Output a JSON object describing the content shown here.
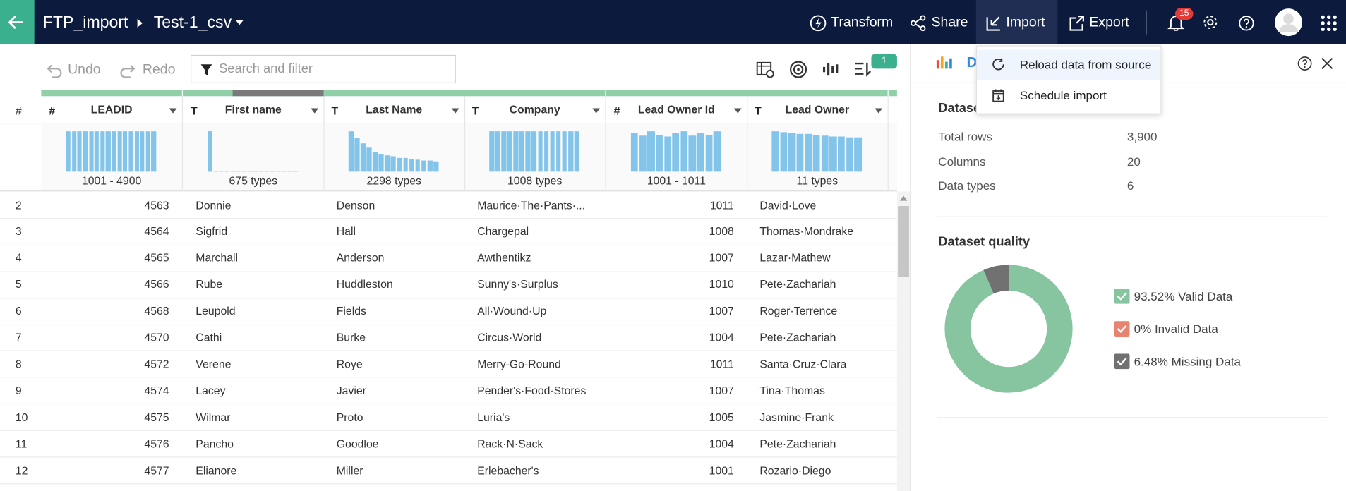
{
  "header": {
    "project": "FTP_import",
    "dataset": "Test-1_csv",
    "actions": [
      "Transform",
      "Share",
      "Import",
      "Export"
    ],
    "notification_count": 15
  },
  "toolbar": {
    "undo": "Undo",
    "redo": "Redo",
    "search_placeholder": "Search and filter",
    "badge": 1
  },
  "import_menu": [
    "Reload data from source",
    "Schedule import"
  ],
  "table": {
    "row_header": "#",
    "columns": [
      {
        "type": "#",
        "name": "LEADID",
        "summary": "1001 - 4900"
      },
      {
        "type": "T",
        "name": "First name",
        "summary": "675 types"
      },
      {
        "type": "T",
        "name": "Last Name",
        "summary": "2298 types"
      },
      {
        "type": "T",
        "name": "Company",
        "summary": "1008 types"
      },
      {
        "type": "#",
        "name": "Lead Owner Id",
        "summary": "1001 - 1011"
      },
      {
        "type": "T",
        "name": "Lead Owner",
        "summary": "11 types"
      }
    ],
    "rows": [
      [
        2,
        4563,
        "Donnie",
        "Denson",
        "Maurice·The·Pants·...",
        1011,
        "David·Love"
      ],
      [
        3,
        4564,
        "Sigfrid",
        "Hall",
        "Chargepal",
        1008,
        "Thomas·Mondrake"
      ],
      [
        4,
        4565,
        "Marchall",
        "Anderson",
        "Awthentikz",
        1007,
        "Lazar·Mathew"
      ],
      [
        5,
        4566,
        "Rube",
        "Huddleston",
        "Sunny's·Surplus",
        1010,
        "Pete·Zachariah"
      ],
      [
        6,
        4568,
        "Leupold",
        "Fields",
        "All·Wound·Up",
        1007,
        "Roger·Terrence"
      ],
      [
        7,
        4570,
        "Cathi",
        "Burke",
        "Circus·World",
        1004,
        "Pete·Zachariah"
      ],
      [
        8,
        4572,
        "Verene",
        "Roye",
        "Merry-Go-Round",
        1011,
        "Santa·Cruz·Clara"
      ],
      [
        9,
        4574,
        "Lacey",
        "Javier",
        "Pender's·Food·Stores",
        1007,
        "Tina·Thomas"
      ],
      [
        10,
        4575,
        "Wilmar",
        "Proto",
        "Luria's",
        1005,
        "Jasmine·Frank"
      ],
      [
        11,
        4576,
        "Pancho",
        "Goodloe",
        "Rack·N·Sack",
        1004,
        "Pete·Zachariah"
      ],
      [
        12,
        4577,
        "Elianore",
        "Miller",
        "Erlebacher's",
        1001,
        "Rozario·Diego"
      ]
    ]
  },
  "panel": {
    "title": "D",
    "section": "Datase",
    "stats": [
      [
        "Total rows",
        "3,900"
      ],
      [
        "Columns",
        20
      ],
      [
        "Data types",
        6
      ]
    ],
    "quality_title": "Dataset quality",
    "quality": [
      {
        "value": 93.52,
        "label": "93.52% Valid Data",
        "color": "#86c5a0"
      },
      {
        "value": 0,
        "label": "0% Invalid Data",
        "color": "#e8836f"
      },
      {
        "value": 6.48,
        "label": "6.48% Missing Data",
        "color": "#717171"
      }
    ]
  }
}
